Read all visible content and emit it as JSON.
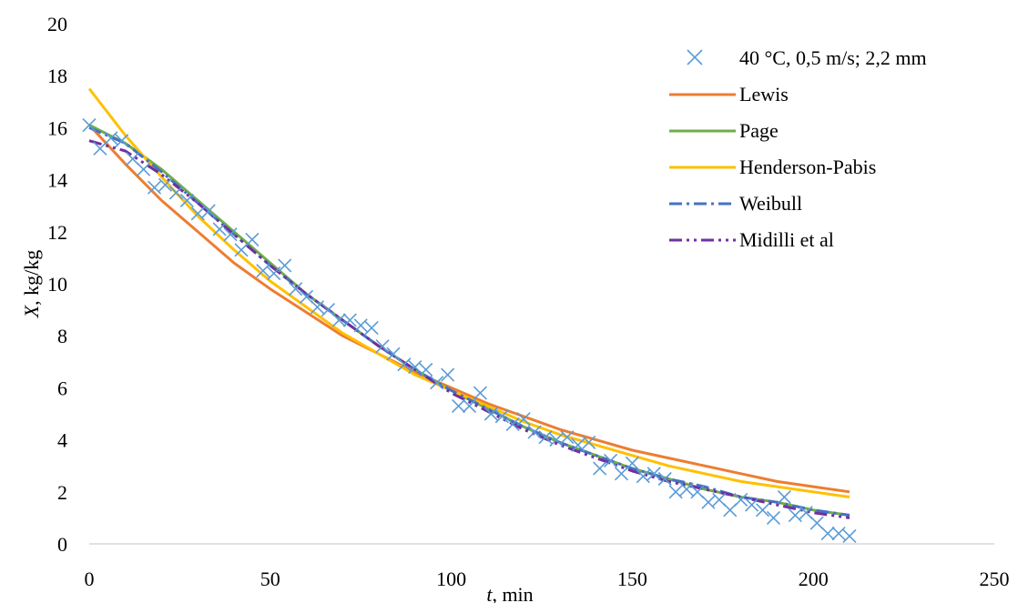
{
  "chart_data": {
    "type": "scatter",
    "xlabel_var": "t",
    "xlabel_unit": ", min",
    "ylabel_var": "X",
    "ylabel_unit": ", kg/kg",
    "xlim": [
      0,
      250
    ],
    "ylim": [
      0,
      20
    ],
    "xticks": [
      0,
      50,
      100,
      150,
      200,
      250
    ],
    "yticks": [
      0,
      2,
      4,
      6,
      8,
      10,
      12,
      14,
      16,
      18,
      20
    ],
    "grid": false,
    "legend_position": "top-right",
    "series": [
      {
        "name": "40 °C, 0,5 m/s; 2,2 mm",
        "kind": "marker",
        "color": "#5B9BD5",
        "x": [
          0,
          3,
          6,
          9,
          12,
          15,
          18,
          21,
          24,
          27,
          30,
          33,
          36,
          39,
          42,
          45,
          48,
          51,
          54,
          57,
          60,
          63,
          66,
          69,
          72,
          75,
          78,
          81,
          84,
          87,
          90,
          93,
          96,
          99,
          102,
          105,
          108,
          111,
          114,
          117,
          120,
          123,
          126,
          129,
          132,
          135,
          138,
          141,
          144,
          147,
          150,
          153,
          156,
          159,
          162,
          165,
          168,
          171,
          174,
          177,
          180,
          183,
          186,
          189,
          192,
          195,
          198,
          201,
          204,
          207,
          210
        ],
        "y": [
          16.1,
          15.2,
          15.6,
          15.5,
          14.8,
          14.4,
          13.7,
          13.8,
          13.5,
          13.2,
          12.7,
          12.8,
          12.1,
          11.9,
          11.3,
          11.7,
          10.5,
          10.4,
          10.7,
          9.8,
          9.5,
          9.1,
          9.0,
          8.6,
          8.6,
          8.4,
          8.3,
          7.6,
          7.3,
          6.9,
          6.8,
          6.7,
          6.2,
          6.5,
          5.3,
          5.3,
          5.8,
          5.0,
          4.9,
          4.6,
          4.8,
          4.3,
          4.1,
          4.0,
          4.1,
          3.8,
          3.9,
          2.9,
          3.2,
          2.7,
          3.1,
          2.6,
          2.7,
          2.5,
          2.0,
          2.1,
          2.0,
          1.6,
          1.7,
          1.3,
          1.7,
          1.5,
          1.3,
          1.0,
          1.8,
          1.1,
          1.2,
          0.8,
          0.4,
          0.4,
          0.3
        ]
      },
      {
        "name": "Lewis",
        "kind": "line",
        "color": "#ED7D31",
        "dash": "solid",
        "x": [
          0,
          10,
          20,
          30,
          40,
          50,
          60,
          70,
          80,
          90,
          100,
          110,
          120,
          130,
          140,
          150,
          160,
          170,
          180,
          190,
          200,
          210
        ],
        "y": [
          16.1,
          14.6,
          13.2,
          12.0,
          10.8,
          9.8,
          8.9,
          8.0,
          7.3,
          6.6,
          6.0,
          5.4,
          4.9,
          4.4,
          4.0,
          3.6,
          3.3,
          3.0,
          2.7,
          2.4,
          2.2,
          2.0
        ]
      },
      {
        "name": "Page",
        "kind": "line",
        "color": "#70AD47",
        "dash": "solid",
        "x": [
          0,
          10,
          20,
          30,
          40,
          50,
          60,
          70,
          80,
          90,
          100,
          110,
          120,
          130,
          140,
          150,
          160,
          170,
          180,
          190,
          200,
          210
        ],
        "y": [
          16.1,
          15.4,
          14.4,
          13.2,
          12.0,
          10.8,
          9.6,
          8.6,
          7.6,
          6.7,
          5.9,
          5.2,
          4.5,
          3.9,
          3.4,
          2.9,
          2.5,
          2.1,
          1.8,
          1.6,
          1.3,
          1.1
        ]
      },
      {
        "name": "Henderson-Pabis",
        "kind": "line",
        "color": "#FFC000",
        "dash": "solid",
        "x": [
          0,
          10,
          20,
          30,
          40,
          50,
          60,
          70,
          80,
          90,
          100,
          110,
          120,
          130,
          140,
          150,
          160,
          170,
          180,
          190,
          200,
          210
        ],
        "y": [
          17.5,
          15.7,
          14.1,
          12.6,
          11.3,
          10.1,
          9.1,
          8.1,
          7.3,
          6.5,
          5.9,
          5.3,
          4.7,
          4.2,
          3.8,
          3.4,
          3.0,
          2.7,
          2.4,
          2.2,
          2.0,
          1.8
        ]
      },
      {
        "name": "Weibull",
        "kind": "line",
        "color": "#4472C4",
        "dash": "dashdot",
        "x": [
          0,
          10,
          20,
          30,
          40,
          50,
          60,
          70,
          80,
          90,
          100,
          110,
          120,
          130,
          140,
          150,
          160,
          170,
          180,
          190,
          200,
          210
        ],
        "y": [
          16.0,
          15.4,
          14.3,
          13.1,
          11.9,
          10.7,
          9.6,
          8.6,
          7.6,
          6.7,
          5.9,
          5.2,
          4.5,
          3.9,
          3.4,
          2.9,
          2.5,
          2.2,
          1.8,
          1.6,
          1.3,
          1.1
        ]
      },
      {
        "name": "Midilli et al",
        "kind": "line",
        "color": "#7030A0",
        "dash": "dashdotdot",
        "x": [
          0,
          10,
          20,
          30,
          40,
          50,
          60,
          70,
          80,
          90,
          100,
          110,
          120,
          130,
          140,
          150,
          160,
          170,
          180,
          190,
          200,
          210
        ],
        "y": [
          15.5,
          15.1,
          14.2,
          13.1,
          11.9,
          10.7,
          9.6,
          8.6,
          7.6,
          6.7,
          5.8,
          5.1,
          4.4,
          3.8,
          3.3,
          2.8,
          2.4,
          2.1,
          1.8,
          1.5,
          1.2,
          1.0
        ]
      }
    ]
  }
}
